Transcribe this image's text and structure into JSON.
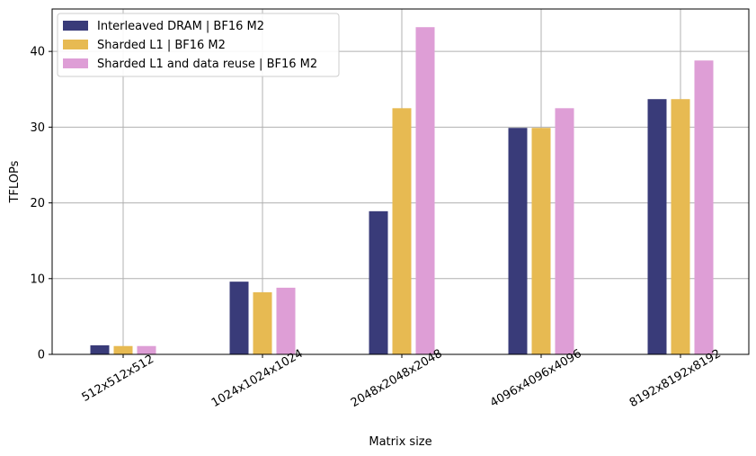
{
  "chart_data": {
    "type": "bar",
    "title": "",
    "xlabel": "Matrix size",
    "ylabel": "TFLOPs",
    "categories": [
      "512x512x512",
      "1024x1024x1024",
      "2048x2048x2048",
      "4096x4096x4096",
      "8192x8192x8192"
    ],
    "series": [
      {
        "name": "Interleaved DRAM | BF16 M2",
        "color": "#393b79",
        "values": [
          1.2,
          9.6,
          18.9,
          29.9,
          33.7
        ]
      },
      {
        "name": "Sharded L1 | BF16 M2",
        "color": "#e7ba52",
        "values": [
          1.1,
          8.2,
          32.5,
          29.9,
          33.7
        ]
      },
      {
        "name": "Sharded L1 and data reuse | BF16 M2",
        "color": "#de9ed6",
        "values": [
          1.1,
          8.8,
          43.2,
          32.5,
          38.8
        ]
      }
    ],
    "ylim": [
      0,
      45.6
    ],
    "yticks": [
      0,
      10,
      20,
      30,
      40
    ],
    "grid": true,
    "legend_position": "top-left"
  }
}
